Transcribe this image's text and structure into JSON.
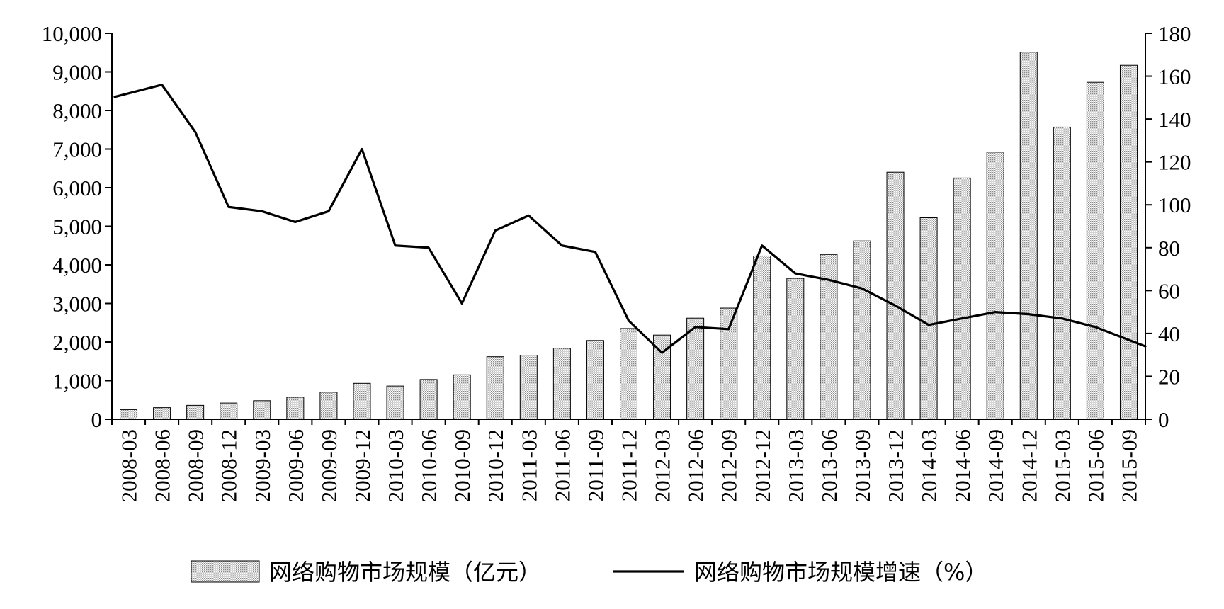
{
  "chart_data": {
    "type": "bar",
    "categories": [
      "2008-03",
      "2008-06",
      "2008-09",
      "2008-12",
      "2009-03",
      "2009-06",
      "2009-09",
      "2009-12",
      "2010-03",
      "2010-06",
      "2010-09",
      "2010-12",
      "2011-03",
      "2011-06",
      "2011-09",
      "2011-12",
      "2012-03",
      "2012-06",
      "2012-09",
      "2012-12",
      "2013-03",
      "2013-06",
      "2013-09",
      "2013-12",
      "2014-03",
      "2014-06",
      "2014-09",
      "2014-12",
      "2015-03",
      "2015-06",
      "2015-09"
    ],
    "series": [
      {
        "name": "网络购物市场规模（亿元）",
        "type": "bar",
        "axis": "left",
        "values": [
          250,
          300,
          360,
          420,
          480,
          570,
          700,
          930,
          860,
          1030,
          1150,
          1620,
          1660,
          1840,
          2040,
          2350,
          2180,
          2620,
          2880,
          4230,
          3650,
          4270,
          4620,
          6400,
          5220,
          6250,
          6920,
          9510,
          7570,
          8730,
          9170
        ]
      },
      {
        "name": "网络购物市场规模增速（%）",
        "type": "line",
        "axis": "right",
        "values": [
          152,
          156,
          134,
          99,
          97,
          92,
          97,
          126,
          81,
          80,
          54,
          88,
          95,
          81,
          78,
          46,
          31,
          43,
          42,
          81,
          68,
          65,
          61,
          53,
          44,
          47,
          50,
          49,
          47,
          43,
          37
        ]
      }
    ],
    "y_left": {
      "range": [
        0,
        10000
      ],
      "ticks": [
        0,
        1000,
        2000,
        3000,
        4000,
        5000,
        6000,
        7000,
        8000,
        9000,
        10000
      ],
      "tick_labels": [
        "0",
        "1,000",
        "2,000",
        "3,000",
        "4,000",
        "5,000",
        "6,000",
        "7,000",
        "8,000",
        "9,000",
        "10,000"
      ]
    },
    "y_right": {
      "range": [
        0,
        180
      ],
      "ticks": [
        0,
        20,
        40,
        60,
        80,
        100,
        120,
        140,
        160,
        180
      ],
      "tick_labels": [
        "0",
        "20",
        "40",
        "60",
        "80",
        "100",
        "120",
        "140",
        "160",
        "180"
      ]
    },
    "title": "",
    "xlabel": "",
    "ylabel": "",
    "legend_position": "bottom",
    "grid": false
  },
  "colors": {
    "bar_fill_pattern": "#b8b8b8",
    "bar_stroke": "#000000",
    "line": "#000000",
    "axis": "#000000"
  }
}
